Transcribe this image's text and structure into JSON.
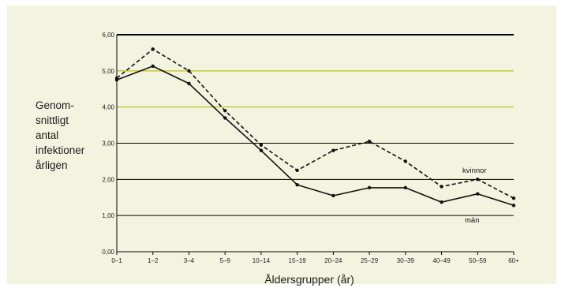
{
  "chart_data": {
    "type": "line",
    "ylabel_lines": [
      "Genom-",
      "snittligt",
      "antal",
      "infektioner",
      "årligen"
    ],
    "xlabel": "Åldersgrupper (år)",
    "categories": [
      "0–1",
      "1–2",
      "3–4",
      "5–9",
      "10–14",
      "15–19",
      "20–24",
      "25–29",
      "30–39",
      "40–49",
      "50–59",
      "60+"
    ],
    "y_ticks": [
      "0,00",
      "1,00",
      "2,00",
      "3,00",
      "4,00",
      "5,00",
      "6,00"
    ],
    "ylim": [
      0,
      6
    ],
    "series": [
      {
        "name": "kvinnor",
        "values": [
          4.8,
          5.6,
          5.0,
          3.9,
          2.95,
          2.25,
          2.8,
          3.05,
          2.5,
          1.8,
          2.0,
          1.48
        ],
        "style": "dashed"
      },
      {
        "name": "män",
        "values": [
          4.75,
          5.13,
          4.65,
          3.7,
          2.8,
          1.85,
          1.55,
          1.77,
          1.77,
          1.37,
          1.6,
          1.28
        ],
        "style": "solid"
      }
    ],
    "gridline_colors": {
      "default": "#000000",
      "highlight": "#aab400"
    },
    "highlight_gridlines": [
      4,
      5
    ]
  }
}
